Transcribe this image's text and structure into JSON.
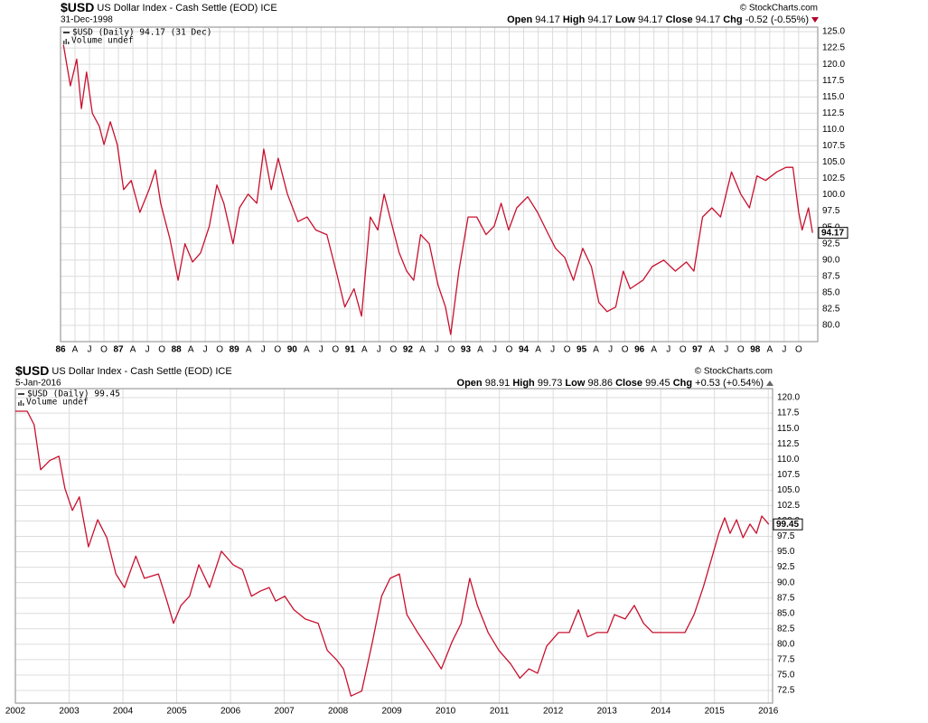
{
  "chart_data": [
    {
      "type": "line",
      "title": "$USD",
      "subtitle": "US Dollar Index - Cash Settle (EOD)",
      "exchange": "ICE",
      "date": "31-Dec-1998",
      "watermark": "© StockCharts.com",
      "quote": [
        {
          "label": "Open",
          "value": 94.17
        },
        {
          "label": "High",
          "value": 94.17
        },
        {
          "label": "Low",
          "value": 94.17
        },
        {
          "label": "Close",
          "value": 94.17
        },
        {
          "label": "Chg",
          "value": "-0.52 (-0.55%)"
        }
      ],
      "volume_label": "Volume undef",
      "x": [
        1986.05,
        1986.17,
        1986.28,
        1986.36,
        1986.45,
        1986.55,
        1986.67,
        1986.75,
        1986.86,
        1986.98,
        1987.09,
        1987.22,
        1987.37,
        1987.53,
        1987.64,
        1987.73,
        1987.89,
        1988.03,
        1988.15,
        1988.28,
        1988.42,
        1988.57,
        1988.7,
        1988.82,
        1988.98,
        1989.09,
        1989.24,
        1989.39,
        1989.51,
        1989.64,
        1989.76,
        1989.92,
        1990.1,
        1990.26,
        1990.41,
        1990.6,
        1990.76,
        1990.91,
        1991.07,
        1991.2,
        1991.35,
        1991.48,
        1991.59,
        1991.69,
        1991.85,
        1991.98,
        1992.1,
        1992.22,
        1992.37,
        1992.52,
        1992.65,
        1992.74,
        1992.88,
        1993.04,
        1993.19,
        1993.35,
        1993.49,
        1993.61,
        1993.74,
        1993.88,
        1994.07,
        1994.24,
        1994.39,
        1994.55,
        1994.71,
        1994.86,
        1995.02,
        1995.17,
        1995.3,
        1995.44,
        1995.59,
        1995.72,
        1995.84,
        1996.06,
        1996.22,
        1996.42,
        1996.62,
        1996.81,
        1996.94,
        1997.09,
        1997.25,
        1997.4,
        1997.59,
        1997.75,
        1997.9,
        1998.03,
        1998.18,
        1998.37,
        1998.53,
        1998.65,
        1998.75,
        1998.81,
        1998.92,
        1998.99
      ],
      "series": [
        {
          "name": "$USD (Daily) 94.17 (31 Dec)",
          "color": "#c8102e",
          "values": [
            123.0,
            116.7,
            120.8,
            113.2,
            118.8,
            112.5,
            110.5,
            107.7,
            111.2,
            107.7,
            100.8,
            102.2,
            97.3,
            100.8,
            103.8,
            98.7,
            93.2,
            86.9,
            92.5,
            89.7,
            91.1,
            95.2,
            101.5,
            98.7,
            92.5,
            98.0,
            100.1,
            98.7,
            107.0,
            100.8,
            105.6,
            100.1,
            95.9,
            96.6,
            94.6,
            93.9,
            88.3,
            82.8,
            85.6,
            81.4,
            96.6,
            94.6,
            100.1,
            96.6,
            91.1,
            88.3,
            86.9,
            93.9,
            92.5,
            86.2,
            82.8,
            78.6,
            88.3,
            96.6,
            96.6,
            93.9,
            95.2,
            98.7,
            94.6,
            98.0,
            99.7,
            97.3,
            94.6,
            91.8,
            90.4,
            86.9,
            91.8,
            89.0,
            83.5,
            82.1,
            82.8,
            88.3,
            85.6,
            86.9,
            89.0,
            90.0,
            88.3,
            89.7,
            88.3,
            96.6,
            98.0,
            96.6,
            103.5,
            100.1,
            98.0,
            102.9,
            102.2,
            103.5,
            104.2,
            104.2,
            97.3,
            94.6,
            98.0,
            94.17
          ]
        }
      ],
      "xlim": [
        1986.0,
        1999.08
      ],
      "xticks": [
        {
          "value": 1986,
          "label": "86"
        },
        {
          "value": 1986.25,
          "label": "A"
        },
        {
          "value": 1986.5,
          "label": "J"
        },
        {
          "value": 1986.75,
          "label": "O"
        },
        {
          "value": 1987,
          "label": "87"
        },
        {
          "value": 1987.25,
          "label": "A"
        },
        {
          "value": 1987.5,
          "label": "J"
        },
        {
          "value": 1987.75,
          "label": "O"
        },
        {
          "value": 1988,
          "label": "88"
        },
        {
          "value": 1988.25,
          "label": "A"
        },
        {
          "value": 1988.5,
          "label": "J"
        },
        {
          "value": 1988.75,
          "label": "O"
        },
        {
          "value": 1989,
          "label": "89"
        },
        {
          "value": 1989.25,
          "label": "A"
        },
        {
          "value": 1989.5,
          "label": "J"
        },
        {
          "value": 1989.75,
          "label": "O"
        },
        {
          "value": 1990,
          "label": "90"
        },
        {
          "value": 1990.25,
          "label": "A"
        },
        {
          "value": 1990.5,
          "label": "J"
        },
        {
          "value": 1990.75,
          "label": "O"
        },
        {
          "value": 1991,
          "label": "91"
        },
        {
          "value": 1991.25,
          "label": "A"
        },
        {
          "value": 1991.5,
          "label": "J"
        },
        {
          "value": 1991.75,
          "label": "O"
        },
        {
          "value": 1992,
          "label": "92"
        },
        {
          "value": 1992.25,
          "label": "A"
        },
        {
          "value": 1992.5,
          "label": "J"
        },
        {
          "value": 1992.75,
          "label": "O"
        },
        {
          "value": 1993,
          "label": "93"
        },
        {
          "value": 1993.25,
          "label": "A"
        },
        {
          "value": 1993.5,
          "label": "J"
        },
        {
          "value": 1993.75,
          "label": "O"
        },
        {
          "value": 1994,
          "label": "94"
        },
        {
          "value": 1994.25,
          "label": "A"
        },
        {
          "value": 1994.5,
          "label": "J"
        },
        {
          "value": 1994.75,
          "label": "O"
        },
        {
          "value": 1995,
          "label": "95"
        },
        {
          "value": 1995.25,
          "label": "A"
        },
        {
          "value": 1995.5,
          "label": "J"
        },
        {
          "value": 1995.75,
          "label": "O"
        },
        {
          "value": 1996,
          "label": "96"
        },
        {
          "value": 1996.25,
          "label": "A"
        },
        {
          "value": 1996.5,
          "label": "J"
        },
        {
          "value": 1996.75,
          "label": "O"
        },
        {
          "value": 1997,
          "label": "97"
        },
        {
          "value": 1997.25,
          "label": "A"
        },
        {
          "value": 1997.5,
          "label": "J"
        },
        {
          "value": 1997.75,
          "label": "O"
        },
        {
          "value": 1998,
          "label": "98"
        },
        {
          "value": 1998.25,
          "label": "A"
        },
        {
          "value": 1998.5,
          "label": "J"
        },
        {
          "value": 1998.75,
          "label": "O"
        }
      ],
      "ylim": [
        77.5,
        125.7
      ],
      "yticks": [
        {
          "value": 80,
          "label": "80.0"
        },
        82.5,
        {
          "value": 85,
          "label": "85.0"
        },
        87.5,
        {
          "value": 90,
          "label": "90.0"
        },
        92.5,
        {
          "value": 95,
          "label": "95.0"
        },
        97.5,
        {
          "value": 100,
          "label": "100.0"
        },
        102.5,
        {
          "value": 105,
          "label": "105.0"
        },
        107.5,
        {
          "value": 110,
          "label": "110.0"
        },
        112.5,
        {
          "value": 115,
          "label": "115.0"
        },
        117.5,
        {
          "value": 120,
          "label": "120.0"
        },
        122.5,
        {
          "value": 125,
          "label": "125.0"
        }
      ],
      "grid": true
    },
    {
      "type": "line",
      "title": "$USD",
      "subtitle": "US Dollar Index - Cash Settle (EOD)",
      "exchange": "ICE",
      "date": "5-Jan-2016",
      "watermark": "© StockCharts.com",
      "quote": [
        {
          "label": "Open",
          "value": 98.91
        },
        {
          "label": "High",
          "value": 99.73
        },
        {
          "label": "Low",
          "value": 98.86
        },
        {
          "label": "Close",
          "value": 99.45
        },
        {
          "label": "Chg",
          "value": "+0.53 (+0.54%)"
        }
      ],
      "volume_label": "Volume undef",
      "x": [
        2002.0,
        2002.22,
        2002.35,
        2002.47,
        2002.64,
        2002.81,
        2002.92,
        2003.06,
        2003.19,
        2003.36,
        2003.53,
        2003.7,
        2003.87,
        2004.03,
        2004.24,
        2004.4,
        2004.66,
        2004.82,
        2004.94,
        2005.08,
        2005.24,
        2005.41,
        2005.61,
        2005.83,
        2006.05,
        2006.22,
        2006.39,
        2006.55,
        2006.72,
        2006.84,
        2007.01,
        2007.18,
        2007.39,
        2007.63,
        2007.8,
        2007.97,
        2008.1,
        2008.24,
        2008.44,
        2008.64,
        2008.81,
        2008.97,
        2009.14,
        2009.28,
        2009.48,
        2009.7,
        2009.92,
        2010.12,
        2010.29,
        2010.45,
        2010.59,
        2010.79,
        2010.99,
        2011.21,
        2011.38,
        2011.55,
        2011.71,
        2011.88,
        2012.1,
        2012.3,
        2012.47,
        2012.64,
        2012.81,
        2013.01,
        2013.14,
        2013.34,
        2013.51,
        2013.68,
        2013.85,
        2014.07,
        2014.29,
        2014.45,
        2014.62,
        2014.79,
        2014.96,
        2015.08,
        2015.19,
        2015.29,
        2015.41,
        2015.53,
        2015.66,
        2015.78,
        2015.88,
        2016.01
      ],
      "series": [
        {
          "name": "$USD (Daily) 99.45",
          "color": "#c8102e",
          "values": [
            117.8,
            117.8,
            115.6,
            108.3,
            109.8,
            110.5,
            105.3,
            101.7,
            103.9,
            95.8,
            100.2,
            97.3,
            91.4,
            89.2,
            94.3,
            90.7,
            91.4,
            87.0,
            83.4,
            86.3,
            87.8,
            92.9,
            89.2,
            95.1,
            92.9,
            92.1,
            87.8,
            88.6,
            89.2,
            87.0,
            87.8,
            85.6,
            84.1,
            83.4,
            79.0,
            77.5,
            76.0,
            71.6,
            72.4,
            80.4,
            87.8,
            90.7,
            91.4,
            84.8,
            81.9,
            79.0,
            76.0,
            80.4,
            83.4,
            90.7,
            86.3,
            81.9,
            79.0,
            76.8,
            74.5,
            76.0,
            75.3,
            79.7,
            81.9,
            81.9,
            85.6,
            81.2,
            81.9,
            81.9,
            84.8,
            84.1,
            86.3,
            83.4,
            81.9,
            81.9,
            81.9,
            81.9,
            84.8,
            89.2,
            94.3,
            98.0,
            100.5,
            98.0,
            100.2,
            97.3,
            99.5,
            98.0,
            100.8,
            99.45
          ]
        }
      ],
      "xlim": [
        2002.0,
        2016.08
      ],
      "xticks": [
        2002,
        2003,
        2004,
        2005,
        2006,
        2007,
        2008,
        2009,
        2010,
        2011,
        2012,
        2013,
        2014,
        2015,
        2016
      ],
      "ylim": [
        70.45,
        121.47
      ],
      "yticks": [
        72.5,
        {
          "value": 75,
          "label": "75.0"
        },
        77.5,
        {
          "value": 80,
          "label": "80.0"
        },
        82.5,
        {
          "value": 85,
          "label": "85.0"
        },
        87.5,
        {
          "value": 90,
          "label": "90.0"
        },
        92.5,
        {
          "value": 95,
          "label": "95.0"
        },
        97.5,
        {
          "value": 100,
          "label": "100.0"
        },
        102.5,
        {
          "value": 105,
          "label": "105.0"
        },
        107.5,
        {
          "value": 110,
          "label": "110.0"
        },
        112.5,
        {
          "value": 115,
          "label": "115.0"
        },
        117.5,
        {
          "value": 120,
          "label": "120.0"
        }
      ],
      "grid": true
    }
  ]
}
